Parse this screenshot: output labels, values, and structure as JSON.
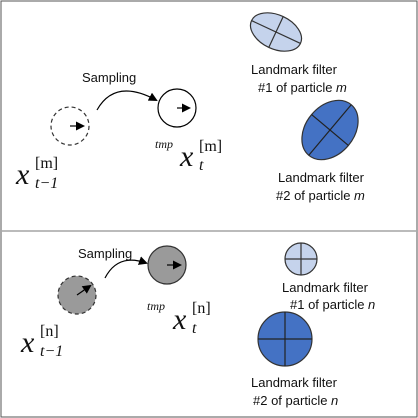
{
  "panels": [
    {
      "particle": "m",
      "sampling_label": "Sampling",
      "prev_state": {
        "symbol": "x",
        "sub": "t−1",
        "sup": "[m]"
      },
      "new_state": {
        "prefix": "tmp",
        "symbol": "x",
        "sub": "t",
        "sup": "[m]"
      },
      "filter1": {
        "line1": "Landmark filter",
        "line2_prefix": "#1 of particle ",
        "line2_var": "m"
      },
      "filter2": {
        "line1": "Landmark filter",
        "line2_prefix": "#2 of particle ",
        "line2_var": "m"
      }
    },
    {
      "particle": "n",
      "sampling_label": "Sampling",
      "prev_state": {
        "symbol": "x",
        "sub": "t−1",
        "sup": "[n]"
      },
      "new_state": {
        "prefix": "tmp",
        "symbol": "x",
        "sub": "t",
        "sup": "[n]"
      },
      "filter1": {
        "line1": "Landmark filter",
        "line2_prefix": "#1 of particle ",
        "line2_var": "n"
      },
      "filter2": {
        "line1": "Landmark filter",
        "line2_prefix": "#2 of particle ",
        "line2_var": "n"
      }
    }
  ],
  "colors": {
    "light_blue": "#c5d3ec",
    "dark_blue": "#4472c4",
    "gray": "#9a9a9a"
  }
}
